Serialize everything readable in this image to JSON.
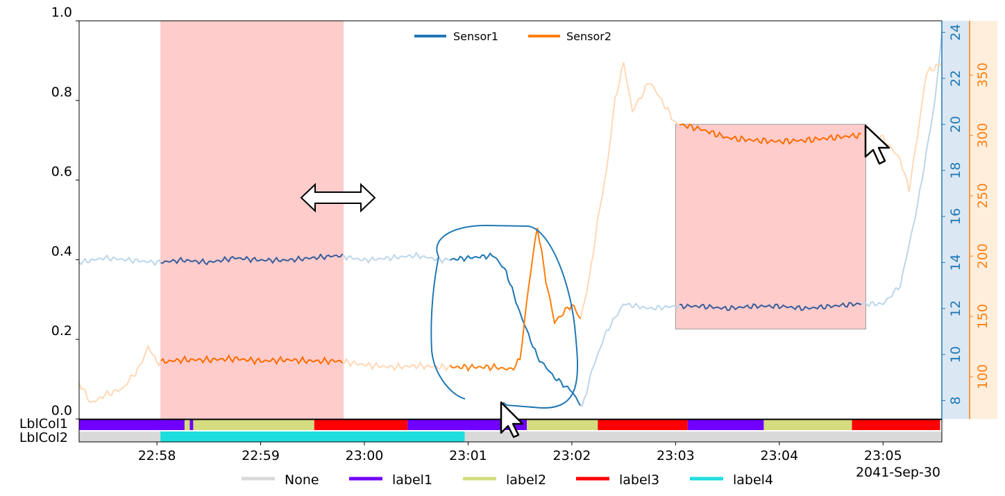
{
  "chart_data": {
    "type": "line",
    "date_label": "2041-Sep-30",
    "x_ticks": [
      "22:58",
      "22:59",
      "23:00",
      "23:01",
      "23:02",
      "23:03",
      "23:04",
      "23:05"
    ],
    "x_range": [
      "22:57:15",
      "23:05:34"
    ],
    "left_axis": {
      "range": [
        0.0,
        1.0
      ],
      "ticks": [
        "0.0",
        "0.2",
        "0.4",
        "0.6",
        "0.8",
        "1.0"
      ]
    },
    "sensor1_axis": {
      "range": [
        7.2,
        24.5
      ],
      "ticks": [
        "8",
        "10",
        "12",
        "14",
        "16",
        "18",
        "20",
        "22",
        "24"
      ]
    },
    "sensor2_axis": {
      "range": [
        65,
        395
      ],
      "ticks": [
        "100",
        "150",
        "200",
        "250",
        "300",
        "350"
      ]
    },
    "series": [
      {
        "name": "Sensor1",
        "color": "#1f77b4",
        "points": [
          [
            "22:57:15",
            14.0
          ],
          [
            "22:57:30",
            14.2
          ],
          [
            "22:57:45",
            14.1
          ],
          [
            "22:58:00",
            14.0
          ],
          [
            "22:58:15",
            14.1
          ],
          [
            "22:58:30",
            14.0
          ],
          [
            "22:58:45",
            14.2
          ],
          [
            "22:59:00",
            14.1
          ],
          [
            "22:59:15",
            14.1
          ],
          [
            "22:59:30",
            14.2
          ],
          [
            "22:59:45",
            14.3
          ],
          [
            "23:00:00",
            14.1
          ],
          [
            "23:00:15",
            14.2
          ],
          [
            "23:00:30",
            14.3
          ],
          [
            "23:00:45",
            14.1
          ],
          [
            "23:01:00",
            14.2
          ],
          [
            "23:01:15",
            14.3
          ],
          [
            "23:01:22",
            13.6
          ],
          [
            "23:01:30",
            11.8
          ],
          [
            "23:01:40",
            9.9
          ],
          [
            "23:01:50",
            9.0
          ],
          [
            "23:02:00",
            8.4
          ],
          [
            "23:02:06",
            7.7
          ],
          [
            "23:02:12",
            9.4
          ],
          [
            "23:02:20",
            11.0
          ],
          [
            "23:02:30",
            12.2
          ],
          [
            "23:02:45",
            12.0
          ],
          [
            "23:03:00",
            12.1
          ],
          [
            "23:03:15",
            12.1
          ],
          [
            "23:03:30",
            12.0
          ],
          [
            "23:03:45",
            12.1
          ],
          [
            "23:04:00",
            12.1
          ],
          [
            "23:04:15",
            12.0
          ],
          [
            "23:04:30",
            12.1
          ],
          [
            "23:04:45",
            12.2
          ],
          [
            "23:05:00",
            12.2
          ],
          [
            "23:05:10",
            13.0
          ],
          [
            "23:05:20",
            16.5
          ],
          [
            "23:05:30",
            21.0
          ],
          [
            "23:05:34",
            24.0
          ]
        ]
      },
      {
        "name": "Sensor2",
        "color": "#ff7f0e",
        "points": [
          [
            "22:57:15",
            95
          ],
          [
            "22:57:22",
            78
          ],
          [
            "22:57:30",
            85
          ],
          [
            "22:57:40",
            90
          ],
          [
            "22:57:50",
            108
          ],
          [
            "22:57:55",
            125
          ],
          [
            "22:58:00",
            112
          ],
          [
            "22:58:15",
            114
          ],
          [
            "22:58:30",
            114
          ],
          [
            "22:58:45",
            115
          ],
          [
            "22:59:00",
            113
          ],
          [
            "22:59:15",
            114
          ],
          [
            "22:59:30",
            113
          ],
          [
            "22:59:45",
            113
          ],
          [
            "23:00:00",
            110
          ],
          [
            "23:00:15",
            108
          ],
          [
            "23:00:30",
            109
          ],
          [
            "23:00:45",
            108
          ],
          [
            "23:01:00",
            108
          ],
          [
            "23:01:15",
            108
          ],
          [
            "23:01:25",
            106
          ],
          [
            "23:01:30",
            114
          ],
          [
            "23:01:35",
            175
          ],
          [
            "23:01:40",
            225
          ],
          [
            "23:01:45",
            180
          ],
          [
            "23:01:50",
            145
          ],
          [
            "23:01:55",
            153
          ],
          [
            "23:02:00",
            160
          ],
          [
            "23:02:05",
            148
          ],
          [
            "23:02:10",
            180
          ],
          [
            "23:02:15",
            230
          ],
          [
            "23:02:20",
            270
          ],
          [
            "23:02:25",
            330
          ],
          [
            "23:02:30",
            360
          ],
          [
            "23:02:35",
            320
          ],
          [
            "23:02:45",
            345
          ],
          [
            "23:03:00",
            310
          ],
          [
            "23:03:15",
            305
          ],
          [
            "23:03:30",
            298
          ],
          [
            "23:03:45",
            296
          ],
          [
            "23:04:00",
            295
          ],
          [
            "23:04:15",
            296
          ],
          [
            "23:04:30",
            298
          ],
          [
            "23:04:45",
            300
          ],
          [
            "23:05:00",
            298
          ],
          [
            "23:05:10",
            280
          ],
          [
            "23:05:15",
            255
          ],
          [
            "23:05:20",
            300
          ],
          [
            "23:05:25",
            352
          ],
          [
            "23:05:34",
            360
          ]
        ]
      }
    ],
    "label_rows": [
      {
        "name": "LblCol1",
        "segments": [
          [
            "22:57:15",
            "22:58:16",
            "label1"
          ],
          [
            "22:58:16",
            "22:58:19",
            "label2"
          ],
          [
            "22:58:19",
            "22:58:21",
            "label1"
          ],
          [
            "22:58:21",
            "22:59:31",
            "label2"
          ],
          [
            "22:59:31",
            "23:00:25",
            "label3"
          ],
          [
            "23:00:25",
            "23:01:34",
            "label1"
          ],
          [
            "23:01:34",
            "23:02:15",
            "label2"
          ],
          [
            "23:02:15",
            "23:03:07",
            "label3"
          ],
          [
            "23:03:07",
            "23:03:51",
            "label1"
          ],
          [
            "23:03:51",
            "23:04:42",
            "label2"
          ],
          [
            "23:04:42",
            "23:05:33",
            "label3"
          ]
        ]
      },
      {
        "name": "LblCol2",
        "segments": [
          [
            "22:57:15",
            "22:58:02",
            "None"
          ],
          [
            "22:58:02",
            "23:00:58",
            "label4"
          ],
          [
            "23:00:58",
            "23:05:34",
            "None"
          ]
        ]
      }
    ],
    "highlight_regions": [
      {
        "x": [
          "22:58:02",
          "22:59:48"
        ],
        "y_left": [
          0.0,
          1.0
        ]
      },
      {
        "x": [
          "23:03:00",
          "23:04:50"
        ],
        "y_left": [
          0.226,
          0.74
        ]
      }
    ],
    "label_legend": [
      {
        "name": "None",
        "color": "#d9d9d9"
      },
      {
        "name": "label1",
        "color": "#7000ff"
      },
      {
        "name": "label2",
        "color": "#d4dc7f"
      },
      {
        "name": "label3",
        "color": "#ff0000"
      },
      {
        "name": "label4",
        "color": "#1fdede"
      }
    ],
    "legend_position": "top-center",
    "grid": false
  }
}
